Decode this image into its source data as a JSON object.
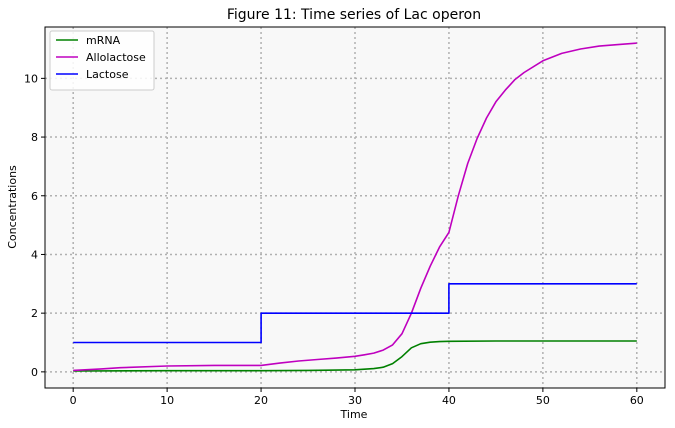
{
  "chart_data": {
    "type": "line",
    "title": "Figure 11: Time series of Lac operon",
    "xlabel": "Time",
    "ylabel": "Concentrations",
    "xlim": [
      -3,
      63
    ],
    "ylim": [
      -0.55,
      11.75
    ],
    "xticks": [
      0,
      10,
      20,
      30,
      40,
      50,
      60
    ],
    "yticks": [
      0,
      2,
      4,
      6,
      8,
      10
    ],
    "grid": true,
    "legend_position": "top-left",
    "background": "#f8f8f8",
    "series": [
      {
        "name": "mRNA",
        "color": "#008000",
        "step": false,
        "x": [
          0,
          10,
          20,
          25,
          28,
          30,
          31,
          32,
          33,
          34,
          35,
          36,
          37,
          38,
          39,
          40,
          45,
          50,
          60
        ],
        "y": [
          0.03,
          0.04,
          0.04,
          0.05,
          0.06,
          0.07,
          0.09,
          0.11,
          0.16,
          0.28,
          0.52,
          0.82,
          0.96,
          1.01,
          1.03,
          1.04,
          1.05,
          1.05,
          1.05
        ]
      },
      {
        "name": "Allolactose",
        "color": "#bf00bf",
        "step": false,
        "x": [
          0,
          3,
          5,
          10,
          15,
          20,
          22,
          24,
          26,
          28,
          30,
          31,
          32,
          33,
          34,
          35,
          36,
          37,
          38,
          39,
          40,
          41,
          42,
          43,
          44,
          45,
          46,
          47,
          48,
          50,
          52,
          54,
          56,
          58,
          60
        ],
        "y": [
          0.05,
          0.1,
          0.14,
          0.2,
          0.22,
          0.22,
          0.3,
          0.37,
          0.42,
          0.47,
          0.53,
          0.58,
          0.64,
          0.74,
          0.92,
          1.3,
          2.0,
          2.85,
          3.6,
          4.25,
          4.75,
          6.0,
          7.1,
          7.95,
          8.65,
          9.2,
          9.6,
          9.95,
          10.2,
          10.6,
          10.85,
          11.0,
          11.1,
          11.15,
          11.2
        ]
      },
      {
        "name": "Lactose",
        "color": "#0000ff",
        "step": true,
        "x": [
          0,
          20,
          20,
          40,
          40,
          60
        ],
        "y": [
          1,
          1,
          2,
          2,
          3,
          3
        ]
      }
    ]
  }
}
